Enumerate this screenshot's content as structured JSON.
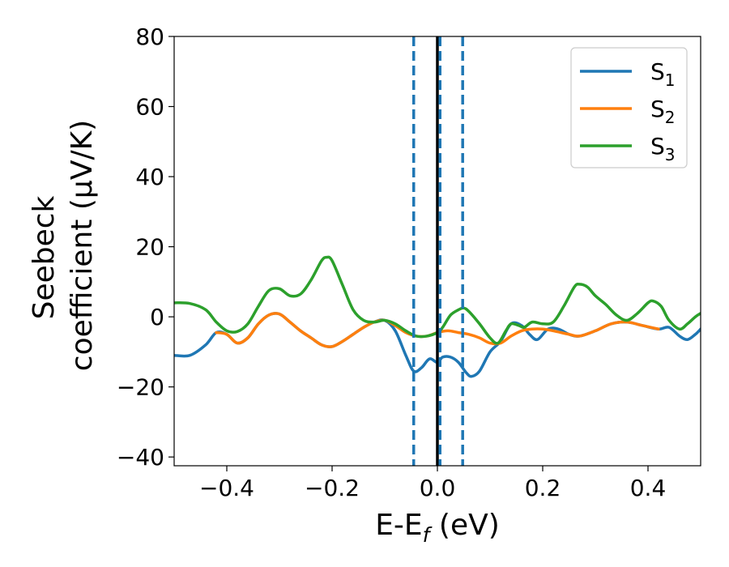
{
  "chart_data": {
    "type": "line",
    "title": "",
    "xlabel": {
      "main": "E-E",
      "sub": "f",
      "tail": " (eV)"
    },
    "ylabel": {
      "line1": "Seebeck",
      "line2": "coefficient  (μV/K)"
    },
    "xlim": [
      -0.5,
      0.5
    ],
    "ylim": [
      -42.5,
      80
    ],
    "xticks": [
      -0.4,
      -0.2,
      0.0,
      0.2,
      0.4
    ],
    "xtick_labels": [
      "−0.4",
      "−0.2",
      "0.0",
      "0.2",
      "0.4"
    ],
    "yticks": [
      -40,
      -20,
      0,
      20,
      40,
      60,
      80
    ],
    "ytick_labels": [
      "−40",
      "−20",
      "0",
      "20",
      "40",
      "60",
      "80"
    ],
    "grid": false,
    "legend_position": "top-right",
    "vertical_lines": [
      {
        "x": -0.045,
        "style": "dashed",
        "color": "#1f77b4"
      },
      {
        "x": 0.0,
        "style": "solid",
        "color": "#000000"
      },
      {
        "x": 0.005,
        "style": "dashed",
        "color": "#1f77b4"
      },
      {
        "x": 0.048,
        "style": "dashed",
        "color": "#1f77b4"
      }
    ],
    "series": [
      {
        "name": "S",
        "name_sub": "1",
        "color": "#1f77b4",
        "points": [
          [
            -0.5,
            -11
          ],
          [
            -0.47,
            -11
          ],
          [
            -0.44,
            -8
          ],
          [
            -0.42,
            -4.5
          ],
          [
            -0.4,
            -5
          ],
          [
            -0.38,
            -7.5
          ],
          [
            -0.36,
            -6
          ],
          [
            -0.34,
            -2
          ],
          [
            -0.32,
            0.5
          ],
          [
            -0.3,
            0.8
          ],
          [
            -0.28,
            -1.5
          ],
          [
            -0.26,
            -4
          ],
          [
            -0.24,
            -6
          ],
          [
            -0.22,
            -8
          ],
          [
            -0.2,
            -8.5
          ],
          [
            -0.18,
            -7
          ],
          [
            -0.16,
            -5
          ],
          [
            -0.14,
            -3
          ],
          [
            -0.12,
            -1.5
          ],
          [
            -0.1,
            -1
          ],
          [
            -0.08,
            -4
          ],
          [
            -0.06,
            -11
          ],
          [
            -0.045,
            -15.5
          ],
          [
            -0.03,
            -14.5
          ],
          [
            -0.015,
            -12
          ],
          [
            0.0,
            -13
          ],
          [
            0.01,
            -11.5
          ],
          [
            0.025,
            -11.5
          ],
          [
            0.04,
            -13
          ],
          [
            0.055,
            -16
          ],
          [
            0.065,
            -17
          ],
          [
            0.08,
            -15.5
          ],
          [
            0.1,
            -10
          ],
          [
            0.12,
            -7
          ],
          [
            0.14,
            -2
          ],
          [
            0.16,
            -2.5
          ],
          [
            0.175,
            -5
          ],
          [
            0.19,
            -6.5
          ],
          [
            0.21,
            -3.5
          ],
          [
            0.23,
            -3.5
          ],
          [
            0.25,
            -5
          ],
          [
            0.27,
            -5.5
          ],
          [
            0.3,
            -4
          ],
          [
            0.33,
            -2
          ],
          [
            0.36,
            -1.5
          ],
          [
            0.39,
            -2.5
          ],
          [
            0.42,
            -3.5
          ],
          [
            0.44,
            -3
          ],
          [
            0.46,
            -5.5
          ],
          [
            0.475,
            -6.5
          ],
          [
            0.49,
            -5
          ],
          [
            0.5,
            -3.5
          ]
        ]
      },
      {
        "name": "S",
        "name_sub": "2",
        "color": "#ff7f0e",
        "points": [
          [
            -0.42,
            -4.5
          ],
          [
            -0.4,
            -5
          ],
          [
            -0.38,
            -7.5
          ],
          [
            -0.36,
            -6
          ],
          [
            -0.34,
            -2
          ],
          [
            -0.32,
            0.5
          ],
          [
            -0.3,
            0.8
          ],
          [
            -0.28,
            -1.5
          ],
          [
            -0.26,
            -4
          ],
          [
            -0.24,
            -6
          ],
          [
            -0.22,
            -8
          ],
          [
            -0.2,
            -8.5
          ],
          [
            -0.18,
            -7
          ],
          [
            -0.16,
            -5
          ],
          [
            -0.14,
            -3
          ],
          [
            -0.12,
            -1.5
          ],
          [
            -0.1,
            -1
          ],
          [
            -0.08,
            -2.5
          ],
          [
            -0.06,
            -4.5
          ],
          [
            -0.04,
            -5.5
          ],
          [
            -0.02,
            -5.5
          ],
          [
            0.0,
            -4.5
          ],
          [
            0.02,
            -4
          ],
          [
            0.04,
            -4.5
          ],
          [
            0.06,
            -5
          ],
          [
            0.08,
            -6
          ],
          [
            0.1,
            -7.5
          ],
          [
            0.12,
            -7.5
          ],
          [
            0.14,
            -5.5
          ],
          [
            0.16,
            -4
          ],
          [
            0.18,
            -3.5
          ],
          [
            0.2,
            -3.5
          ],
          [
            0.22,
            -4
          ],
          [
            0.25,
            -5
          ],
          [
            0.27,
            -5.5
          ],
          [
            0.3,
            -4
          ],
          [
            0.33,
            -2
          ],
          [
            0.36,
            -1.5
          ],
          [
            0.39,
            -2.5
          ],
          [
            0.42,
            -3.5
          ]
        ]
      },
      {
        "name": "S",
        "name_sub": "3",
        "color": "#2ca02c",
        "points": [
          [
            -0.5,
            4
          ],
          [
            -0.47,
            3.8
          ],
          [
            -0.44,
            2
          ],
          [
            -0.42,
            -1.5
          ],
          [
            -0.4,
            -4
          ],
          [
            -0.38,
            -4.2
          ],
          [
            -0.36,
            -2
          ],
          [
            -0.34,
            3
          ],
          [
            -0.32,
            7.5
          ],
          [
            -0.3,
            8
          ],
          [
            -0.28,
            6
          ],
          [
            -0.26,
            6.5
          ],
          [
            -0.24,
            10.5
          ],
          [
            -0.22,
            16
          ],
          [
            -0.21,
            17
          ],
          [
            -0.2,
            16
          ],
          [
            -0.18,
            9
          ],
          [
            -0.16,
            2
          ],
          [
            -0.14,
            -1
          ],
          [
            -0.12,
            -1.5
          ],
          [
            -0.1,
            -1
          ],
          [
            -0.08,
            -2
          ],
          [
            -0.06,
            -4
          ],
          [
            -0.04,
            -5.5
          ],
          [
            -0.02,
            -5.5
          ],
          [
            0.0,
            -4.5
          ],
          [
            0.01,
            -3
          ],
          [
            0.025,
            0.5
          ],
          [
            0.04,
            2
          ],
          [
            0.05,
            2.5
          ],
          [
            0.06,
            1.5
          ],
          [
            0.08,
            -2
          ],
          [
            0.1,
            -6
          ],
          [
            0.115,
            -7.5
          ],
          [
            0.13,
            -4
          ],
          [
            0.14,
            -2
          ],
          [
            0.155,
            -2.5
          ],
          [
            0.165,
            -3
          ],
          [
            0.18,
            -1.5
          ],
          [
            0.2,
            -2
          ],
          [
            0.22,
            -1.5
          ],
          [
            0.24,
            3
          ],
          [
            0.26,
            8.5
          ],
          [
            0.27,
            9.3
          ],
          [
            0.285,
            8.5
          ],
          [
            0.3,
            6
          ],
          [
            0.32,
            3.5
          ],
          [
            0.34,
            0.5
          ],
          [
            0.36,
            -1
          ],
          [
            0.38,
            1
          ],
          [
            0.4,
            4
          ],
          [
            0.41,
            4.5
          ],
          [
            0.425,
            3
          ],
          [
            0.44,
            -1
          ],
          [
            0.46,
            -3.5
          ],
          [
            0.475,
            -2
          ],
          [
            0.49,
            0
          ],
          [
            0.5,
            1
          ]
        ]
      }
    ]
  }
}
